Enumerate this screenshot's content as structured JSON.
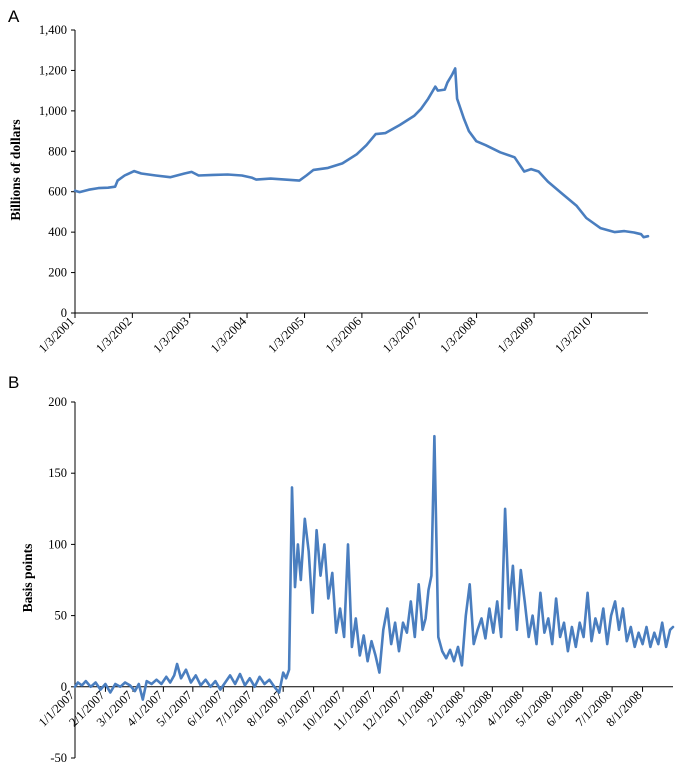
{
  "chart_data": [
    {
      "panel_label": "A",
      "type": "line",
      "ylabel": "Billions of dollars",
      "ylim": [
        0,
        1400
      ],
      "yticks": [
        0,
        200,
        400,
        600,
        800,
        1000,
        1200,
        1400
      ],
      "ytick_labels": [
        "0",
        "200",
        "400",
        "600",
        "800",
        "1,000",
        "1,200",
        "1,400"
      ],
      "x_start": "1/3/2001",
      "x_end": "12/29/2010",
      "xtick_labels": [
        "1/3/2001",
        "1/3/2002",
        "1/3/2003",
        "1/3/2004",
        "1/3/2005",
        "1/3/2006",
        "1/3/2007",
        "1/3/2008",
        "1/3/2009",
        "1/3/2010"
      ],
      "grid": false,
      "series": [
        {
          "color": "#4a7ebf",
          "points": [
            [
              "2001-01-03",
              605
            ],
            [
              "2001-02-01",
              598
            ],
            [
              "2001-04-01",
              610
            ],
            [
              "2001-06-01",
              618
            ],
            [
              "2001-08-01",
              620
            ],
            [
              "2001-09-15",
              625
            ],
            [
              "2001-10-01",
              655
            ],
            [
              "2001-11-15",
              680
            ],
            [
              "2002-01-15",
              702
            ],
            [
              "2002-03-01",
              690
            ],
            [
              "2002-06-01",
              680
            ],
            [
              "2002-09-01",
              672
            ],
            [
              "2002-12-01",
              690
            ],
            [
              "2003-01-15",
              698
            ],
            [
              "2003-03-01",
              680
            ],
            [
              "2003-06-01",
              683
            ],
            [
              "2003-09-01",
              685
            ],
            [
              "2003-12-01",
              680
            ],
            [
              "2004-02-01",
              670
            ],
            [
              "2004-03-01",
              660
            ],
            [
              "2004-06-01",
              665
            ],
            [
              "2004-09-01",
              660
            ],
            [
              "2004-12-01",
              655
            ],
            [
              "2005-01-15",
              680
            ],
            [
              "2005-03-01",
              708
            ],
            [
              "2005-06-01",
              718
            ],
            [
              "2005-09-01",
              740
            ],
            [
              "2005-12-01",
              785
            ],
            [
              "2006-02-01",
              830
            ],
            [
              "2006-04-01",
              885
            ],
            [
              "2006-06-01",
              890
            ],
            [
              "2006-09-01",
              930
            ],
            [
              "2006-12-01",
              975
            ],
            [
              "2007-01-15",
              1010
            ],
            [
              "2007-03-01",
              1060
            ],
            [
              "2007-04-15",
              1120
            ],
            [
              "2007-05-01",
              1100
            ],
            [
              "2007-06-15",
              1105
            ],
            [
              "2007-07-01",
              1140
            ],
            [
              "2007-08-01",
              1180
            ],
            [
              "2007-08-20",
              1210
            ],
            [
              "2007-09-01",
              1060
            ],
            [
              "2007-10-15",
              960
            ],
            [
              "2007-11-15",
              900
            ],
            [
              "2008-01-01",
              850
            ],
            [
              "2008-03-01",
              830
            ],
            [
              "2008-06-01",
              795
            ],
            [
              "2008-09-01",
              770
            ],
            [
              "2008-11-01",
              700
            ],
            [
              "2008-12-15",
              712
            ],
            [
              "2009-02-01",
              700
            ],
            [
              "2009-04-01",
              650
            ],
            [
              "2009-07-01",
              590
            ],
            [
              "2009-10-01",
              530
            ],
            [
              "2009-12-01",
              470
            ],
            [
              "2010-01-15",
              445
            ],
            [
              "2010-03-01",
              420
            ],
            [
              "2010-06-01",
              400
            ],
            [
              "2010-08-01",
              405
            ],
            [
              "2010-10-01",
              398
            ],
            [
              "2010-11-15",
              390
            ],
            [
              "2010-12-01",
              375
            ],
            [
              "2010-12-29",
              380
            ]
          ]
        }
      ]
    },
    {
      "panel_label": "B",
      "type": "line",
      "ylabel": "Basis points",
      "ylim": [
        -50,
        200
      ],
      "yticks": [
        -50,
        0,
        50,
        100,
        150,
        200
      ],
      "ytick_labels": [
        "-50",
        "0",
        "50",
        "100",
        "150",
        "200"
      ],
      "x_start": "1/1/2007",
      "x_end": "9/1/2008",
      "xtick_labels": [
        "1/1/2007",
        "2/1/2007",
        "3/1/2007",
        "4/1/2007",
        "5/1/2007",
        "6/1/2007",
        "7/1/2007",
        "8/1/2007",
        "9/1/2007",
        "10/1/2007",
        "11/1/2007",
        "12/1/2007",
        "1/1/2008",
        "2/1/2008",
        "3/1/2008",
        "4/1/2008",
        "5/1/2008",
        "6/1/2008",
        "7/1/2008",
        "8/1/2008"
      ],
      "grid": false,
      "series": [
        {
          "color": "#4a7ebf",
          "points": [
            [
              "2007-01-01",
              0
            ],
            [
              "2007-01-04",
              3
            ],
            [
              "2007-01-08",
              1
            ],
            [
              "2007-01-12",
              4
            ],
            [
              "2007-01-17",
              0
            ],
            [
              "2007-01-22",
              3
            ],
            [
              "2007-01-27",
              -2
            ],
            [
              "2007-02-01",
              2
            ],
            [
              "2007-02-06",
              -4
            ],
            [
              "2007-02-11",
              2
            ],
            [
              "2007-02-16",
              0
            ],
            [
              "2007-02-21",
              3
            ],
            [
              "2007-02-26",
              1
            ],
            [
              "2007-03-03",
              -3
            ],
            [
              "2007-03-07",
              2
            ],
            [
              "2007-03-11",
              -9
            ],
            [
              "2007-03-15",
              4
            ],
            [
              "2007-03-20",
              2
            ],
            [
              "2007-03-25",
              5
            ],
            [
              "2007-03-30",
              2
            ],
            [
              "2007-04-04",
              7
            ],
            [
              "2007-04-08",
              3
            ],
            [
              "2007-04-12",
              8
            ],
            [
              "2007-04-15",
              16
            ],
            [
              "2007-04-19",
              6
            ],
            [
              "2007-04-24",
              12
            ],
            [
              "2007-04-29",
              3
            ],
            [
              "2007-05-04",
              8
            ],
            [
              "2007-05-09",
              1
            ],
            [
              "2007-05-14",
              5
            ],
            [
              "2007-05-19",
              0
            ],
            [
              "2007-05-24",
              4
            ],
            [
              "2007-05-29",
              -2
            ],
            [
              "2007-06-03",
              3
            ],
            [
              "2007-06-08",
              8
            ],
            [
              "2007-06-13",
              2
            ],
            [
              "2007-06-18",
              9
            ],
            [
              "2007-06-23",
              1
            ],
            [
              "2007-06-28",
              6
            ],
            [
              "2007-07-03",
              0
            ],
            [
              "2007-07-08",
              7
            ],
            [
              "2007-07-13",
              2
            ],
            [
              "2007-07-18",
              5
            ],
            [
              "2007-07-23",
              0
            ],
            [
              "2007-07-28",
              -4
            ],
            [
              "2007-08-01",
              10
            ],
            [
              "2007-08-04",
              6
            ],
            [
              "2007-08-07",
              12
            ],
            [
              "2007-08-10",
              140
            ],
            [
              "2007-08-13",
              70
            ],
            [
              "2007-08-16",
              100
            ],
            [
              "2007-08-19",
              75
            ],
            [
              "2007-08-23",
              118
            ],
            [
              "2007-08-27",
              95
            ],
            [
              "2007-08-31",
              52
            ],
            [
              "2007-09-04",
              110
            ],
            [
              "2007-09-08",
              78
            ],
            [
              "2007-09-12",
              100
            ],
            [
              "2007-09-16",
              62
            ],
            [
              "2007-09-20",
              80
            ],
            [
              "2007-09-24",
              38
            ],
            [
              "2007-09-28",
              55
            ],
            [
              "2007-10-02",
              35
            ],
            [
              "2007-10-06",
              100
            ],
            [
              "2007-10-10",
              28
            ],
            [
              "2007-10-14",
              48
            ],
            [
              "2007-10-18",
              22
            ],
            [
              "2007-10-22",
              36
            ],
            [
              "2007-10-26",
              18
            ],
            [
              "2007-10-30",
              32
            ],
            [
              "2007-11-03",
              22
            ],
            [
              "2007-11-07",
              10
            ],
            [
              "2007-11-11",
              40
            ],
            [
              "2007-11-15",
              55
            ],
            [
              "2007-11-19",
              30
            ],
            [
              "2007-11-23",
              45
            ],
            [
              "2007-11-27",
              25
            ],
            [
              "2007-12-01",
              45
            ],
            [
              "2007-12-05",
              38
            ],
            [
              "2007-12-09",
              60
            ],
            [
              "2007-12-13",
              35
            ],
            [
              "2007-12-17",
              72
            ],
            [
              "2007-12-21",
              40
            ],
            [
              "2007-12-24",
              48
            ],
            [
              "2007-12-27",
              68
            ],
            [
              "2007-12-30",
              78
            ],
            [
              "2008-01-02",
              176
            ],
            [
              "2008-01-06",
              35
            ],
            [
              "2008-01-10",
              25
            ],
            [
              "2008-01-14",
              20
            ],
            [
              "2008-01-18",
              26
            ],
            [
              "2008-01-22",
              18
            ],
            [
              "2008-01-26",
              28
            ],
            [
              "2008-01-30",
              15
            ],
            [
              "2008-02-03",
              50
            ],
            [
              "2008-02-07",
              72
            ],
            [
              "2008-02-11",
              30
            ],
            [
              "2008-02-15",
              40
            ],
            [
              "2008-02-19",
              48
            ],
            [
              "2008-02-23",
              34
            ],
            [
              "2008-02-27",
              55
            ],
            [
              "2008-03-02",
              38
            ],
            [
              "2008-03-06",
              60
            ],
            [
              "2008-03-10",
              35
            ],
            [
              "2008-03-14",
              125
            ],
            [
              "2008-03-18",
              55
            ],
            [
              "2008-03-22",
              85
            ],
            [
              "2008-03-26",
              40
            ],
            [
              "2008-03-30",
              82
            ],
            [
              "2008-04-03",
              60
            ],
            [
              "2008-04-07",
              35
            ],
            [
              "2008-04-11",
              50
            ],
            [
              "2008-04-15",
              30
            ],
            [
              "2008-04-19",
              66
            ],
            [
              "2008-04-23",
              38
            ],
            [
              "2008-04-27",
              48
            ],
            [
              "2008-05-01",
              30
            ],
            [
              "2008-05-05",
              62
            ],
            [
              "2008-05-09",
              35
            ],
            [
              "2008-05-13",
              45
            ],
            [
              "2008-05-17",
              25
            ],
            [
              "2008-05-21",
              42
            ],
            [
              "2008-05-25",
              28
            ],
            [
              "2008-05-29",
              45
            ],
            [
              "2008-06-02",
              35
            ],
            [
              "2008-06-06",
              66
            ],
            [
              "2008-06-10",
              32
            ],
            [
              "2008-06-14",
              48
            ],
            [
              "2008-06-18",
              38
            ],
            [
              "2008-06-22",
              55
            ],
            [
              "2008-06-26",
              30
            ],
            [
              "2008-06-30",
              50
            ],
            [
              "2008-07-04",
              60
            ],
            [
              "2008-07-08",
              40
            ],
            [
              "2008-07-12",
              55
            ],
            [
              "2008-07-16",
              32
            ],
            [
              "2008-07-20",
              42
            ],
            [
              "2008-07-24",
              28
            ],
            [
              "2008-07-28",
              38
            ],
            [
              "2008-08-01",
              30
            ],
            [
              "2008-08-05",
              42
            ],
            [
              "2008-08-09",
              28
            ],
            [
              "2008-08-13",
              38
            ],
            [
              "2008-08-17",
              30
            ],
            [
              "2008-08-21",
              45
            ],
            [
              "2008-08-25",
              28
            ],
            [
              "2008-08-29",
              40
            ],
            [
              "2008-09-01",
              42
            ]
          ]
        }
      ]
    }
  ]
}
